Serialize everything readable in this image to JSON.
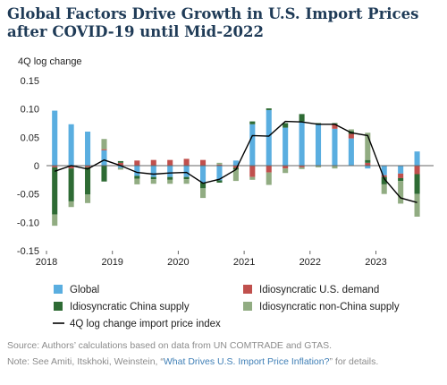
{
  "header": {
    "title_line1": "Global Factors Drive Growth in U.S. Import Prices",
    "title_line2": "after COVID-19 until Mid-2022"
  },
  "chart_data": {
    "type": "bar",
    "stacked": true,
    "ylabel": "4Q log change",
    "ylim": [
      -0.15,
      0.15
    ],
    "yticks": [
      -0.15,
      -0.1,
      -0.05,
      0,
      0.05,
      0.1,
      0.15
    ],
    "ytick_labels": [
      "-0.15",
      "-0.10",
      "-0.05",
      "0",
      "0.05",
      "0.10",
      "0.15"
    ],
    "xticks": [
      "2018",
      "2019",
      "2020",
      "2021",
      "2022",
      "2023"
    ],
    "x": [
      "2018Q1",
      "2018Q2",
      "2018Q3",
      "2018Q4",
      "2019Q1",
      "2019Q2",
      "2019Q3",
      "2019Q4",
      "2020Q1",
      "2020Q2",
      "2020Q3",
      "2020Q4",
      "2021Q1",
      "2021Q2",
      "2021Q3",
      "2021Q4",
      "2022Q1",
      "2022Q2",
      "2022Q3",
      "2022Q4",
      "2023Q1",
      "2023Q2",
      "2023Q3"
    ],
    "grid": false,
    "legend_position": "bottom",
    "series": [
      {
        "name": "Global",
        "color": "#5aaee0",
        "values": [
          0.097,
          0.073,
          0.06,
          0.027,
          -0.004,
          -0.018,
          -0.02,
          -0.02,
          -0.02,
          -0.03,
          -0.026,
          0.009,
          0.073,
          0.098,
          0.067,
          0.078,
          0.072,
          0.065,
          0.048,
          -0.005,
          -0.017,
          -0.014,
          0.025
        ]
      },
      {
        "name": "Idiosyncratic U.S. demand",
        "color": "#c0504d",
        "values": [
          -0.003,
          -0.005,
          -0.003,
          0.002,
          0.005,
          0.009,
          0.01,
          0.01,
          0.012,
          0.01,
          0.002,
          -0.004,
          -0.02,
          -0.012,
          -0.005,
          -0.003,
          0.0,
          0.008,
          0.008,
          0.005,
          -0.003,
          -0.008,
          -0.015
        ]
      },
      {
        "name": "Idiosyncratic China supply",
        "color": "#2e6b34",
        "values": [
          -0.083,
          -0.058,
          -0.048,
          -0.028,
          0.003,
          -0.005,
          -0.004,
          -0.005,
          -0.004,
          -0.01,
          -0.004,
          -0.003,
          0.005,
          0.003,
          0.008,
          0.013,
          0.003,
          0.002,
          0.005,
          0.005,
          -0.013,
          -0.005,
          -0.035
        ]
      },
      {
        "name": "Idiosyncratic non-China supply",
        "color": "#91ac82",
        "values": [
          -0.02,
          -0.01,
          -0.015,
          0.018,
          -0.003,
          -0.01,
          -0.008,
          -0.007,
          -0.008,
          -0.017,
          0.003,
          -0.02,
          -0.005,
          -0.022,
          -0.008,
          -0.003,
          -0.003,
          -0.005,
          0.003,
          0.048,
          -0.017,
          -0.04,
          -0.04
        ]
      },
      {
        "name": "4Q log change import price index",
        "type": "line",
        "color": "#000000",
        "values": [
          -0.01,
          0.0,
          -0.006,
          0.01,
          0.0,
          -0.012,
          -0.015,
          -0.013,
          -0.012,
          -0.031,
          -0.024,
          -0.007,
          0.053,
          0.052,
          0.078,
          0.077,
          0.073,
          0.073,
          0.058,
          0.053,
          -0.023,
          -0.057,
          -0.065
        ]
      }
    ]
  },
  "footer": {
    "source": "Source: Authors’ calculations based on data from UN COMTRADE and GTAS.",
    "note_prefix": "Note: See Amiti, Itskhoki, Weinstein, “",
    "note_link": "What Drives U.S. Import Price Inflation?",
    "note_suffix": "” for details."
  }
}
